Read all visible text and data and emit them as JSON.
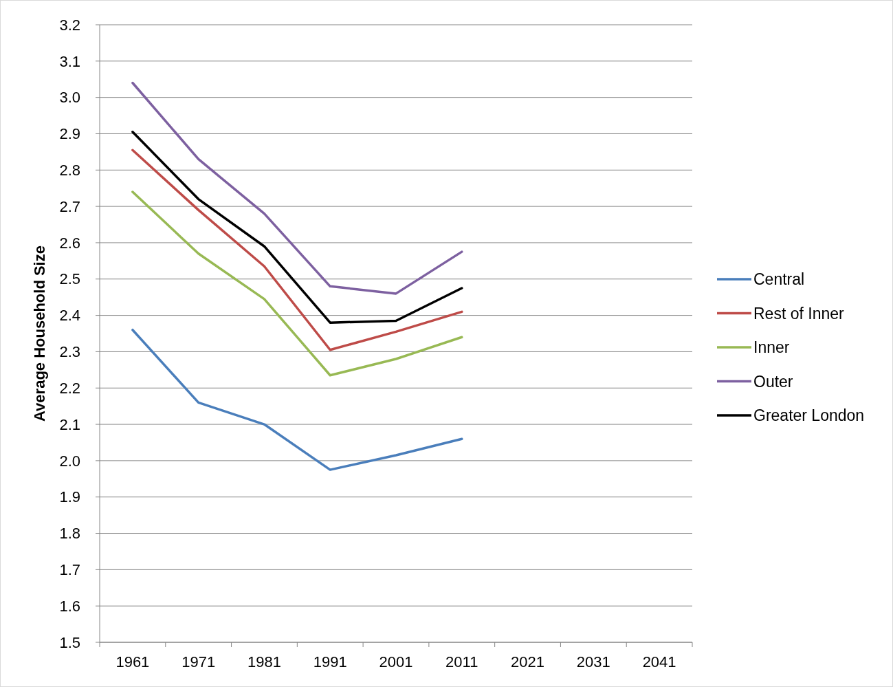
{
  "chart_data": {
    "type": "line",
    "ylabel": "Average Household Size",
    "categories": [
      "1961",
      "1971",
      "1981",
      "1991",
      "2001",
      "2011",
      "2021",
      "2031",
      "2041"
    ],
    "series": [
      {
        "name": "Central",
        "color": "#4a7ebb",
        "values": [
          2.36,
          2.16,
          2.1,
          1.975,
          2.015,
          2.06,
          null,
          null,
          null
        ]
      },
      {
        "name": "Rest of Inner",
        "color": "#be4b48",
        "values": [
          2.855,
          2.69,
          2.535,
          2.305,
          2.355,
          2.41,
          null,
          null,
          null
        ]
      },
      {
        "name": "Inner",
        "color": "#98b954",
        "values": [
          2.74,
          2.57,
          2.445,
          2.235,
          2.28,
          2.34,
          null,
          null,
          null
        ]
      },
      {
        "name": "Outer",
        "color": "#7d60a0",
        "values": [
          3.04,
          2.83,
          2.68,
          2.48,
          2.46,
          2.575,
          null,
          null,
          null
        ]
      },
      {
        "name": "Greater London",
        "color": "#000000",
        "values": [
          2.905,
          2.72,
          2.59,
          2.38,
          2.385,
          2.475,
          null,
          null,
          null
        ]
      }
    ],
    "ylim": [
      1.5,
      3.2
    ],
    "yticks": [
      1.5,
      1.6,
      1.7,
      1.8,
      1.9,
      {
        "value": 2,
        "label": "2.0"
      },
      2.1,
      2.2,
      2.3,
      2.4,
      2.5,
      2.6,
      2.7,
      2.8,
      2.9,
      {
        "value": 3,
        "label": "3.0"
      },
      3.1,
      3.2
    ],
    "grid": "y",
    "legend": "right",
    "marker": "none",
    "line_style": "solid"
  }
}
